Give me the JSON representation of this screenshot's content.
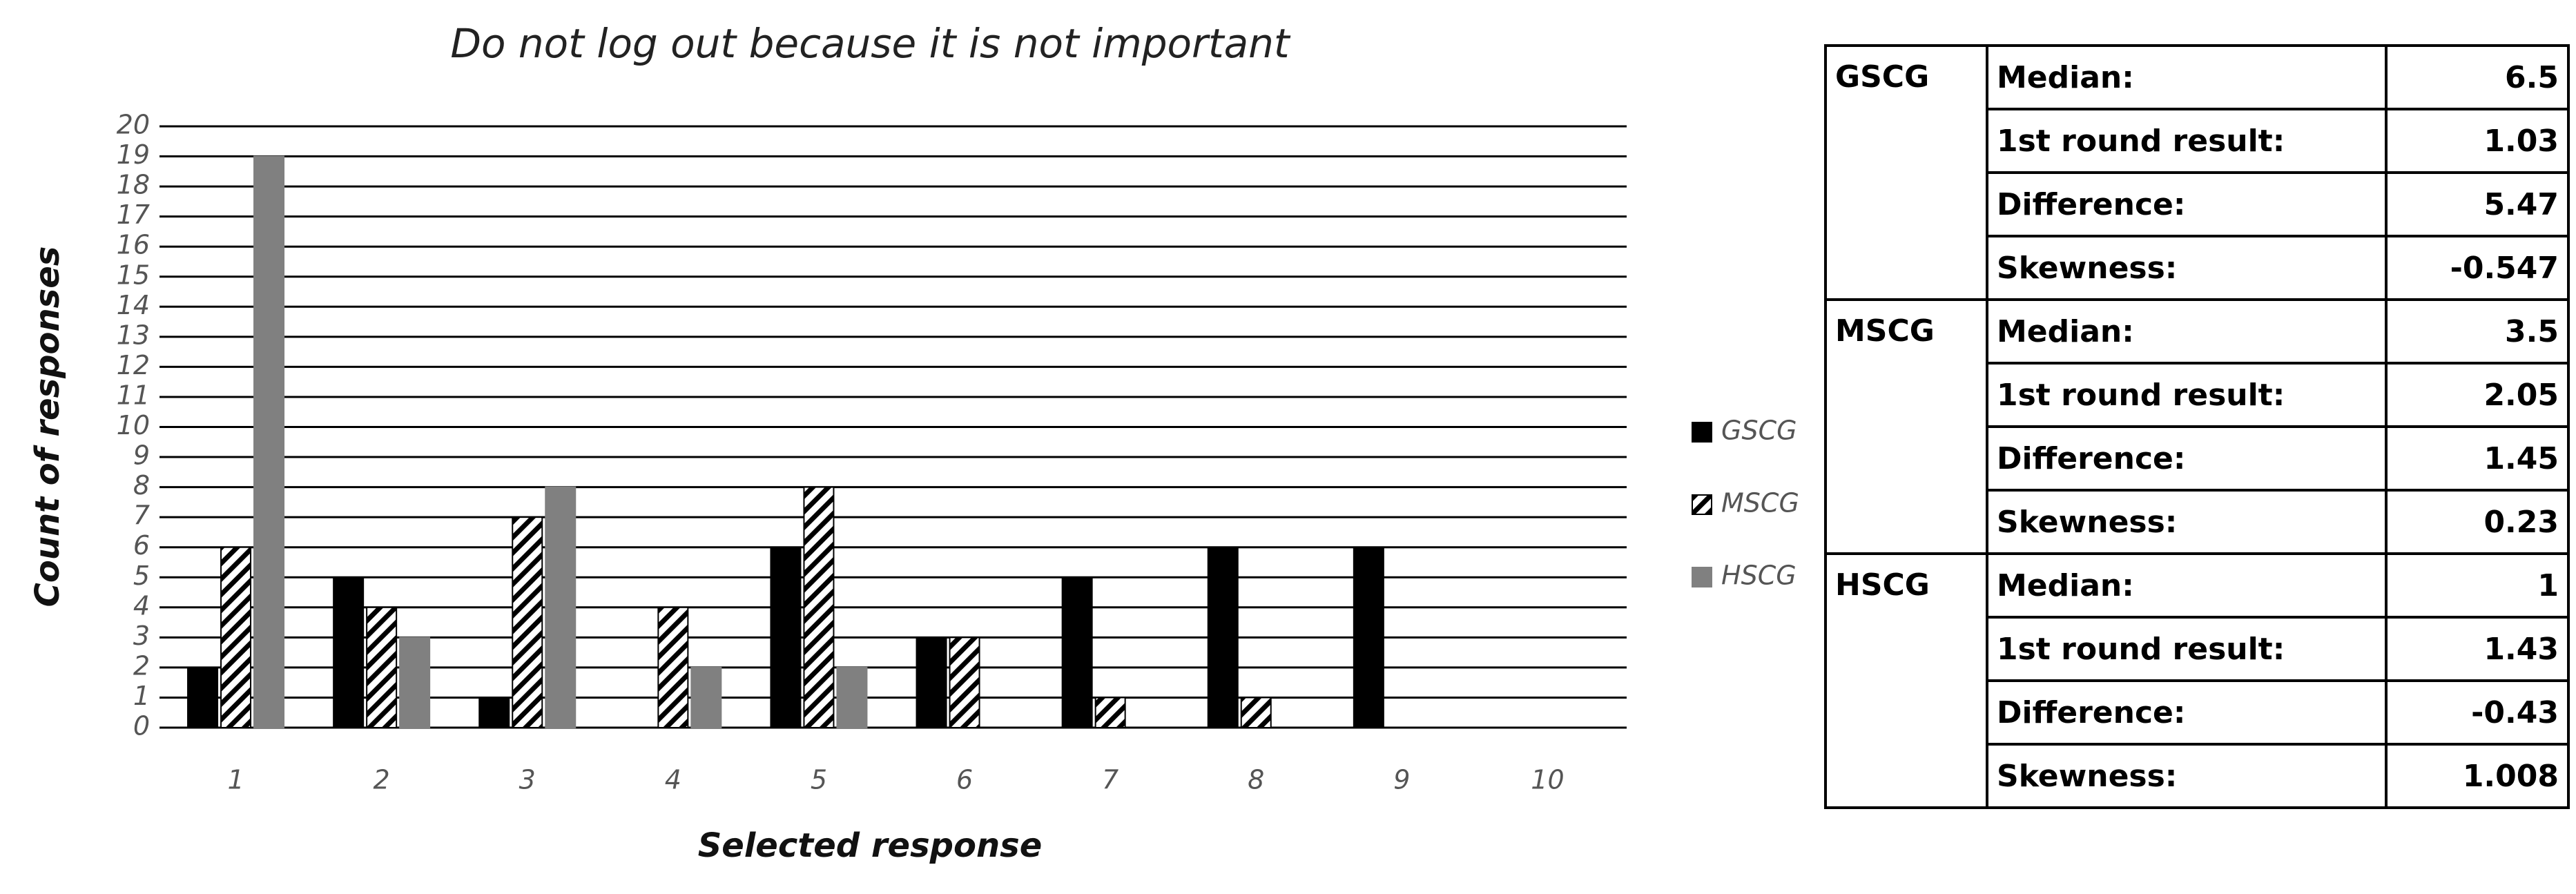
{
  "chart_data": {
    "type": "bar",
    "title": "Do not log out because it is not important",
    "x_label": "Selected response",
    "y_label": "Count of responses",
    "categories": [
      "1",
      "2",
      "3",
      "4",
      "5",
      "6",
      "7",
      "8",
      "9",
      "10"
    ],
    "series": [
      {
        "name": "GSCG",
        "color": "#000000",
        "values": [
          2,
          5,
          1,
          0,
          6,
          3,
          5,
          6,
          6,
          0
        ]
      },
      {
        "name": "MSCG",
        "color": "#000000",
        "hatch": true,
        "values": [
          6,
          4,
          7,
          4,
          8,
          3,
          1,
          1,
          0,
          0
        ]
      },
      {
        "name": "HSCG",
        "color": "#808080",
        "values": [
          19,
          3,
          8,
          2,
          2,
          0,
          0,
          0,
          0,
          0
        ]
      }
    ],
    "ylim": [
      0,
      20
    ],
    "yticks": [
      0,
      1,
      2,
      3,
      4,
      5,
      6,
      7,
      8,
      9,
      10,
      11,
      12,
      13,
      14,
      15,
      16,
      17,
      18,
      19,
      20
    ],
    "grid": true,
    "legend": "right"
  },
  "table": {
    "groups": [
      {
        "name": "GSCG",
        "rows": [
          [
            "Median:",
            "6.5"
          ],
          [
            "1st round result:",
            "1.03"
          ],
          [
            "Difference:",
            "5.47"
          ],
          [
            "Skewness:",
            "-0.547"
          ]
        ]
      },
      {
        "name": "MSCG",
        "rows": [
          [
            "Median:",
            "3.5"
          ],
          [
            "1st round result:",
            "2.05"
          ],
          [
            "Difference:",
            "1.45"
          ],
          [
            "Skewness:",
            "0.23"
          ]
        ]
      },
      {
        "name": "HSCG",
        "rows": [
          [
            "Median:",
            "1"
          ],
          [
            "1st round result:",
            "1.43"
          ],
          [
            "Difference:",
            "-0.43"
          ],
          [
            "Skewness:",
            "1.008"
          ]
        ]
      }
    ]
  }
}
